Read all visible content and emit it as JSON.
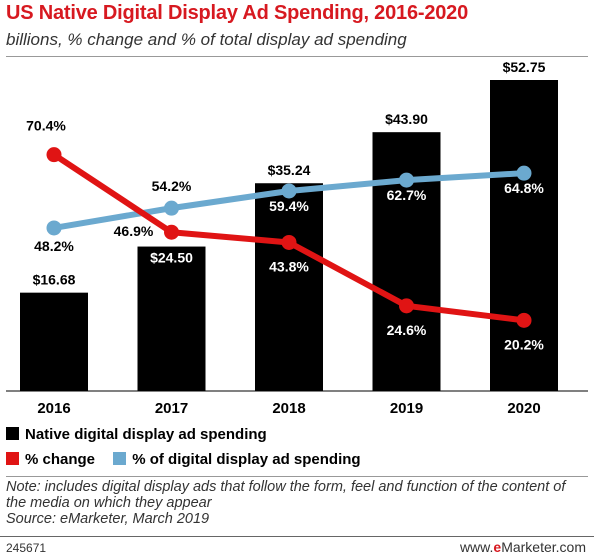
{
  "header": {
    "title": "US Native Digital Display Ad Spending, 2016-2020",
    "subtitle": "billions, % change and % of total display ad spending"
  },
  "legend": {
    "spending": "Native digital display ad spending",
    "change": "% change",
    "share": "% of digital display ad spending"
  },
  "colors": {
    "bar": "#000000",
    "change": "#e01414",
    "share": "#6ba9cf",
    "title": "#d71920"
  },
  "note": {
    "text": "Note: includes digital display ads that follow the form, feel and function of the content of the media on which they appear",
    "source": "Source: eMarketer, March 2019"
  },
  "footer": {
    "id": "245671",
    "brand_prefix": "www.",
    "brand_mark": "e",
    "brand_suffix": "Marketer.com"
  },
  "chart_data": {
    "type": "bar",
    "categories": [
      "2016",
      "2017",
      "2018",
      "2019",
      "2020"
    ],
    "series": [
      {
        "name": "Native digital display ad spending",
        "kind": "bar",
        "values": [
          16.68,
          24.5,
          35.24,
          43.9,
          52.75
        ],
        "labels": [
          "$16.68",
          "$24.50",
          "$35.24",
          "$43.90",
          "$52.75"
        ]
      },
      {
        "name": "% change",
        "kind": "line",
        "values": [
          70.4,
          46.9,
          43.8,
          24.6,
          20.2
        ],
        "labels": [
          "70.4%",
          "46.9%",
          "43.8%",
          "24.6%",
          "20.2%"
        ]
      },
      {
        "name": "% of digital display ad spending",
        "kind": "line",
        "values": [
          48.2,
          54.2,
          59.4,
          62.7,
          64.8
        ],
        "labels": [
          "48.2%",
          "54.2%",
          "59.4%",
          "62.7%",
          "64.8%"
        ]
      }
    ],
    "grid": false,
    "legend_position": "bottom-left"
  }
}
